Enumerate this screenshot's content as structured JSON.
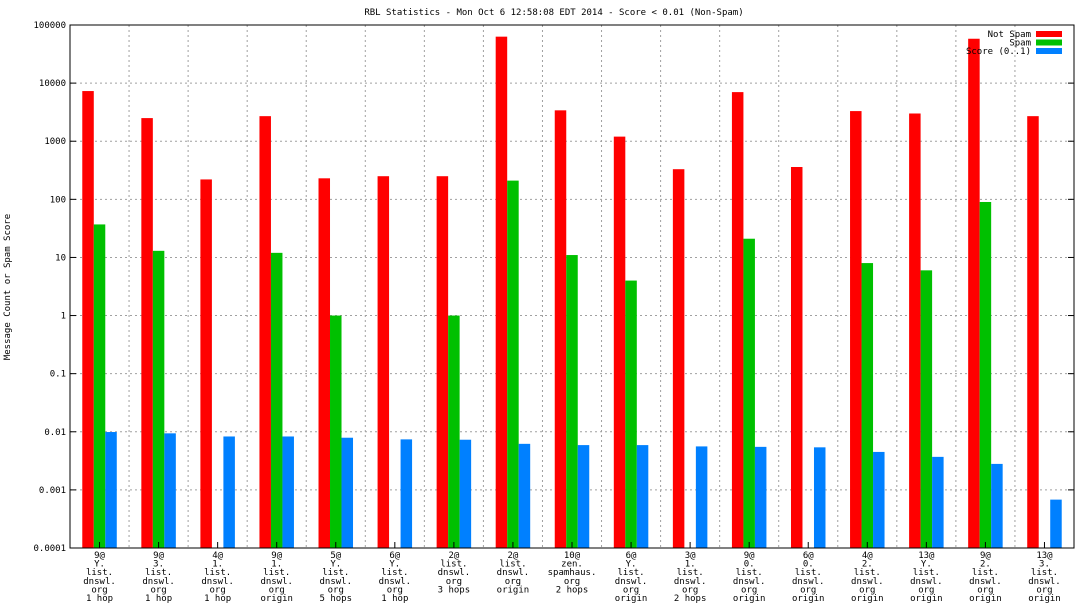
{
  "chart_data": {
    "type": "bar",
    "title": "RBL Statistics - Mon Oct  6 12:58:08 EDT 2014 - Score < 0.01 (Non-Spam)",
    "xlabel": "",
    "ylabel": "Message Count or Spam Score",
    "yscale": "log",
    "ylim": [
      0.0001,
      100000
    ],
    "y_ticks": [
      "0.0001",
      "0.001",
      "0.01",
      "0.1",
      "1",
      "10",
      "100",
      "1000",
      "10000",
      "100000"
    ],
    "grid": true,
    "legend_position": "top-right",
    "categories": [
      [
        "9@",
        "Y.",
        "list.",
        "dnswl.",
        "org",
        "1 hop"
      ],
      [
        "9@",
        "3.",
        "list.",
        "dnswl.",
        "org",
        "1 hop"
      ],
      [
        "4@",
        "1.",
        "list.",
        "dnswl.",
        "org",
        "1 hop"
      ],
      [
        "9@",
        "1.",
        "list.",
        "dnswl.",
        "org",
        "origin"
      ],
      [
        "5@",
        "Y.",
        "list.",
        "dnswl.",
        "org",
        "5 hops"
      ],
      [
        "6@",
        "Y.",
        "list.",
        "dnswl.",
        "org",
        "1 hop"
      ],
      [
        "2@",
        "list.",
        "dnswl.",
        "org",
        "3 hops"
      ],
      [
        "2@",
        "list.",
        "dnswl.",
        "org",
        "origin"
      ],
      [
        "10@",
        "zen.",
        "spamhaus.",
        "org",
        "2 hops"
      ],
      [
        "6@",
        "Y.",
        "list.",
        "dnswl.",
        "org",
        "origin"
      ],
      [
        "3@",
        "1.",
        "list.",
        "dnswl.",
        "org",
        "2 hops"
      ],
      [
        "9@",
        "0.",
        "list.",
        "dnswl.",
        "org",
        "origin"
      ],
      [
        "6@",
        "0.",
        "list.",
        "dnswl.",
        "org",
        "origin"
      ],
      [
        "4@",
        "2.",
        "list.",
        "dnswl.",
        "org",
        "origin"
      ],
      [
        "13@",
        "Y.",
        "list.",
        "dnswl.",
        "org",
        "origin"
      ],
      [
        "9@",
        "2.",
        "list.",
        "dnswl.",
        "org",
        "origin"
      ],
      [
        "13@",
        "3.",
        "list.",
        "dnswl.",
        "org",
        "origin"
      ]
    ],
    "series": [
      {
        "name": "Not Spam",
        "color": "#ff0000",
        "values": [
          7300,
          2500,
          220,
          2700,
          230,
          250,
          250,
          63000,
          3400,
          1200,
          330,
          7000,
          360,
          3300,
          3000,
          58000,
          2700
        ]
      },
      {
        "name": "Spam",
        "color": "#00c000",
        "values": [
          37,
          13,
          null,
          12,
          1,
          null,
          1,
          210,
          11,
          4,
          null,
          21,
          null,
          8,
          6,
          90,
          null
        ]
      },
      {
        "name": "Score (0..1)",
        "color": "#0080ff",
        "values": [
          0.0099,
          0.0094,
          0.0083,
          0.0083,
          0.0079,
          0.0074,
          0.0073,
          0.0062,
          0.0059,
          0.0059,
          0.0056,
          0.0055,
          0.0054,
          0.0045,
          0.0037,
          0.0028,
          0.00068
        ]
      }
    ]
  }
}
